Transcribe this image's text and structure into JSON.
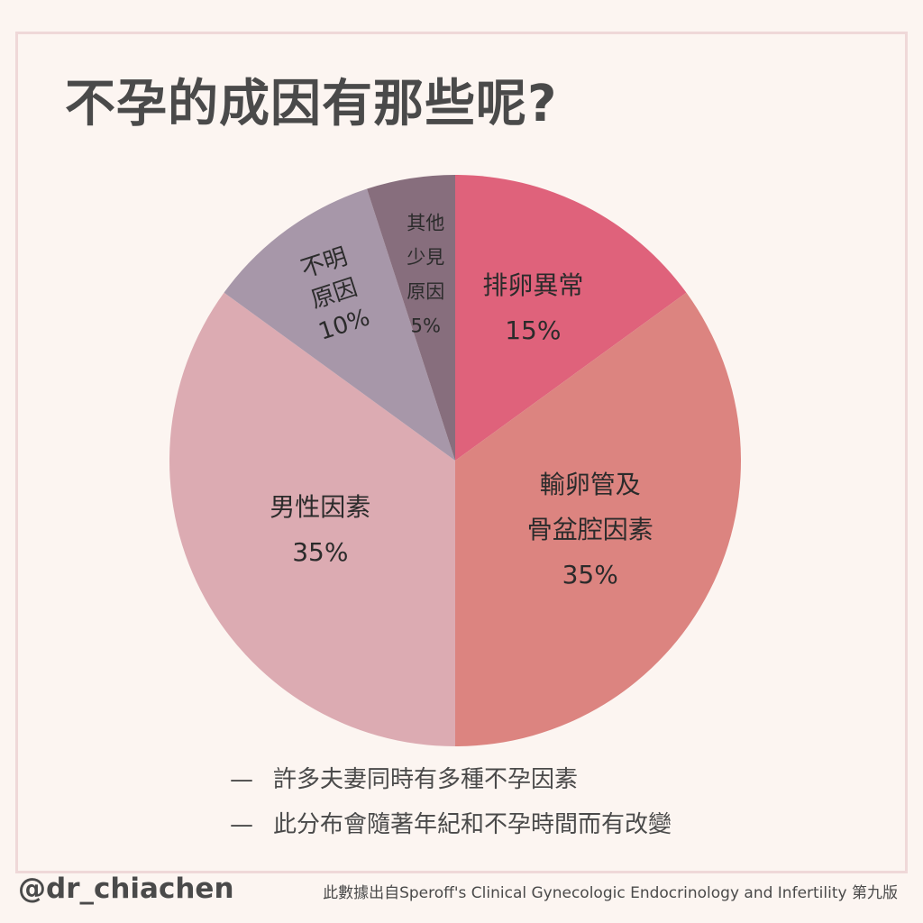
{
  "title": "不孕的成因有那些呢?",
  "chart_data": {
    "type": "pie",
    "start": "12 o'clock, clockwise",
    "slices": [
      {
        "label_lines": [
          "排卵異常",
          "15%"
        ],
        "value": 15,
        "color": "#df627b"
      },
      {
        "label_lines": [
          "輸卵管及",
          "骨盆腔因素",
          "35%"
        ],
        "value": 35,
        "color": "#dc8480"
      },
      {
        "label_lines": [
          "男性因素",
          "35%"
        ],
        "value": 35,
        "color": "#dcabb2"
      },
      {
        "label_lines": [
          "不明",
          "原因",
          "10%"
        ],
        "value": 10,
        "color": "#a797a9"
      },
      {
        "label_lines": [
          "其他",
          "少見",
          "原因",
          "5%"
        ],
        "value": 5,
        "color": "#876e7d"
      }
    ]
  },
  "notes": [
    {
      "dash": "—",
      "text": "許多夫妻同時有多種不孕因素"
    },
    {
      "dash": "—",
      "text": "此分布會隨著年紀和不孕時間而有改變"
    }
  ],
  "footer": {
    "handle": "@dr_chiachen",
    "source": "此數據出自Speroff's Clinical Gynecologic Endocrinology and Infertility 第九版"
  }
}
